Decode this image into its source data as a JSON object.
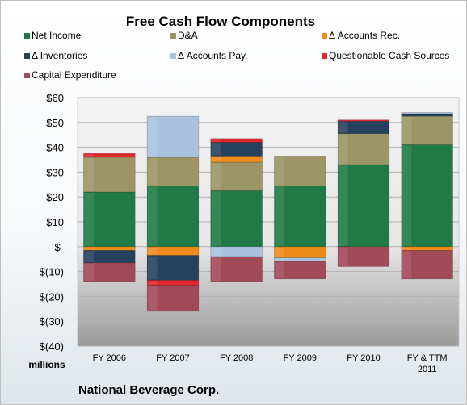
{
  "chart_data": {
    "type": "bar",
    "stacked": true,
    "title": "Free Cash Flow Components",
    "ylabel": "millions",
    "footer": "National Beverage Corp.",
    "ylim": [
      -40,
      60
    ],
    "yticks": [
      60,
      50,
      40,
      30,
      20,
      10,
      0,
      -10,
      -20,
      -30,
      -40
    ],
    "ytick_labels": [
      "$60",
      "$50",
      "$40",
      "$30",
      "$20",
      "$10",
      "$-",
      "$(10)",
      "$(20)",
      "$(30)",
      "$(40)"
    ],
    "categories": [
      "FY 2006",
      "FY 2007",
      "FY 2008",
      "FY 2009",
      "FY 2010",
      "FY & TTM 2011"
    ],
    "category_lines": [
      [
        "FY 2006"
      ],
      [
        "FY 2007"
      ],
      [
        "FY 2008"
      ],
      [
        "FY 2009"
      ],
      [
        "FY 2010"
      ],
      [
        "FY & TTM",
        "2011"
      ]
    ],
    "legend_placement": "top",
    "series": [
      {
        "name": "Net Income",
        "color": "#1f7a45",
        "values": [
          22,
          24.5,
          22.5,
          24.5,
          33,
          41
        ]
      },
      {
        "name": "D&A",
        "color": "#9c9566",
        "values": [
          14,
          11.5,
          11.5,
          12,
          12.5,
          11.5
        ]
      },
      {
        "name": "Δ Accounts Rec.",
        "color": "#ee8a1a",
        "values": [
          -1.5,
          -3.5,
          2.5,
          -4.5,
          0,
          -1.5
        ]
      },
      {
        "name": "Δ Inventories",
        "color": "#26415e",
        "values": [
          -5,
          -10,
          5.5,
          0,
          5,
          1
        ]
      },
      {
        "name": "Δ Accounts Pay.",
        "color": "#a9c2de",
        "values": [
          0,
          16.5,
          -4,
          -1.5,
          0,
          0.5
        ]
      },
      {
        "name": "Questionable Cash Sources",
        "color": "#e2262e",
        "values": [
          1.5,
          -2,
          1.5,
          0,
          0.5,
          0
        ]
      },
      {
        "name": "Capital Expenditure",
        "color": "#a24a57",
        "values": [
          -7.5,
          -10.5,
          -10,
          -7,
          -8,
          -11.5
        ]
      }
    ]
  }
}
